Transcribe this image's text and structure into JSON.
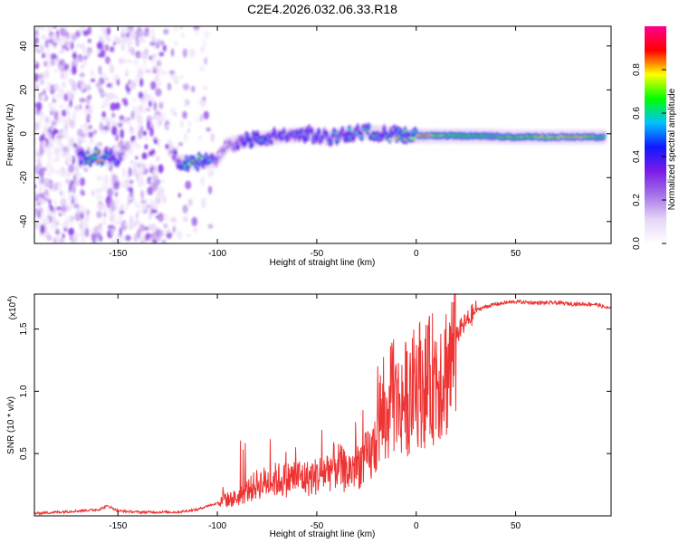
{
  "title": "C2E4.2026.032.06.33.R18",
  "chart_data": [
    {
      "type": "heatmap",
      "title": "C2E4.2026.032.06.33.R18",
      "xlabel": "Height of straight line (km)",
      "ylabel": "Frequency (Hz)",
      "xlim": [
        -192,
        98
      ],
      "ylim": [
        -50,
        49
      ],
      "xticks": [
        -150,
        -100,
        -50,
        0,
        50
      ],
      "yticks": [
        -40,
        -20,
        0,
        20,
        40
      ],
      "colorbar": {
        "label": "Normalized spectral amplitude",
        "range": [
          0.0,
          1.0
        ],
        "ticks": [
          0.0,
          0.2,
          0.4,
          0.6,
          0.8
        ],
        "colors": [
          "#ffffff",
          "#e6d6f6",
          "#a673e8",
          "#7a1be8",
          "#1018ff",
          "#00c2ff",
          "#00ff00",
          "#ffff00",
          "#ff0000",
          "#ff0090"
        ]
      },
      "ridge": [
        {
          "x": -170,
          "y": -11,
          "amp": 0.55
        },
        {
          "x": -160,
          "y": -10.5,
          "amp": 0.95
        },
        {
          "x": -150,
          "y": -11,
          "amp": 0.5
        },
        {
          "x": -140,
          "y": -3,
          "amp": 0.15
        },
        {
          "x": -125,
          "y": -4,
          "amp": 0.1
        },
        {
          "x": -120,
          "y": -13,
          "amp": 0.45
        },
        {
          "x": -110,
          "y": -13,
          "amp": 0.9
        },
        {
          "x": -100,
          "y": -12,
          "amp": 0.35
        },
        {
          "x": -95,
          "y": -5,
          "amp": 0.3
        },
        {
          "x": -85,
          "y": -3,
          "amp": 0.6
        },
        {
          "x": -75,
          "y": -2,
          "amp": 0.55
        },
        {
          "x": -65,
          "y": -1,
          "amp": 0.5
        },
        {
          "x": -55,
          "y": 0,
          "amp": 0.5
        },
        {
          "x": -45,
          "y": -2,
          "amp": 0.55
        },
        {
          "x": -35,
          "y": 0,
          "amp": 0.6
        },
        {
          "x": -25,
          "y": 1,
          "amp": 0.6
        },
        {
          "x": -15,
          "y": 0,
          "amp": 0.7
        },
        {
          "x": -5,
          "y": -1,
          "amp": 0.85
        },
        {
          "x": 5,
          "y": -1,
          "amp": 0.92
        },
        {
          "x": 15,
          "y": -1,
          "amp": 0.7
        },
        {
          "x": 30,
          "y": -1,
          "amp": 0.65
        },
        {
          "x": 50,
          "y": -1.5,
          "amp": 0.72
        },
        {
          "x": 70,
          "y": -1.5,
          "amp": 0.78
        },
        {
          "x": 85,
          "y": -1.5,
          "amp": 0.8
        },
        {
          "x": 95,
          "y": -1.5,
          "amp": 0.6
        }
      ]
    },
    {
      "type": "line",
      "xlabel": "Height of straight line (km)",
      "ylabel": "SNR (10 * v/v)",
      "yscale_label": "(x10",
      "yscale_exponent": "4",
      "xlim": [
        -192,
        98
      ],
      "ylim": [
        0,
        1.78
      ],
      "xticks": [
        -150,
        -100,
        -50,
        0,
        50
      ],
      "yticks": [
        0.5,
        1.0,
        1.5
      ],
      "ytick_labels": [
        "0.5",
        "1.0",
        "1.5"
      ],
      "series": [
        {
          "name": "SNR",
          "color": "#ee3333",
          "x": [
            -192,
            -180,
            -170,
            -160,
            -155,
            -150,
            -140,
            -130,
            -120,
            -115,
            -110,
            -105,
            -100,
            -97,
            -95,
            -90,
            -85,
            -80,
            -75,
            -70,
            -65,
            -60,
            -55,
            -50,
            -45,
            -40,
            -35,
            -30,
            -25,
            -22,
            -20,
            -18,
            -15,
            -12,
            -10,
            -8,
            -5,
            -3,
            0,
            5,
            10,
            15,
            20,
            25,
            30,
            35,
            40,
            50,
            60,
            70,
            80,
            90,
            98
          ],
          "y": [
            0.02,
            0.03,
            0.04,
            0.05,
            0.08,
            0.04,
            0.03,
            0.03,
            0.03,
            0.04,
            0.05,
            0.08,
            0.1,
            0.18,
            0.14,
            0.16,
            0.22,
            0.28,
            0.3,
            0.32,
            0.32,
            0.35,
            0.33,
            0.35,
            0.4,
            0.45,
            0.38,
            0.45,
            0.5,
            0.55,
            0.7,
            0.9,
            0.8,
            1.1,
            0.95,
            1.0,
            1.05,
            1.0,
            1.2,
            1.15,
            1.25,
            1.3,
            1.45,
            1.55,
            1.65,
            1.68,
            1.7,
            1.72,
            1.71,
            1.71,
            1.7,
            1.7,
            1.66
          ]
        }
      ]
    }
  ]
}
